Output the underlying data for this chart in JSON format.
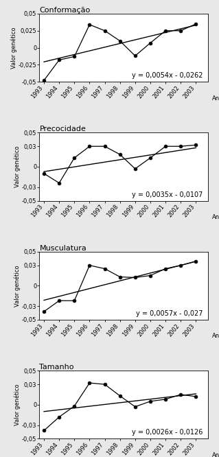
{
  "years": [
    1993,
    1994,
    1995,
    1996,
    1997,
    1998,
    1999,
    2000,
    2001,
    2002,
    2003
  ],
  "panels": [
    {
      "title": "Conformação",
      "equation": "y = 0,0054x - 0,0262",
      "slope": 0.0054,
      "intercept": -0.0262,
      "data_y": [
        -0.048,
        -0.018,
        -0.013,
        0.034,
        0.025,
        0.01,
        -0.012,
        0.007,
        0.025,
        0.025,
        0.035
      ],
      "ylim": [
        -0.05,
        0.05
      ],
      "yticks": [
        -0.05,
        -0.025,
        0,
        0.025,
        0.05
      ],
      "ytick_labels": [
        "-0,05",
        "-0,025",
        "0",
        "0,025",
        "0,05"
      ]
    },
    {
      "title": "Precocidade",
      "equation": "y = 0,0035x - 0,0107",
      "slope": 0.0035,
      "intercept": -0.0107,
      "data_y": [
        -0.01,
        -0.024,
        0.013,
        0.03,
        0.03,
        0.018,
        -0.003,
        0.013,
        0.03,
        0.03,
        0.032
      ],
      "ylim": [
        -0.05,
        0.05
      ],
      "yticks": [
        -0.05,
        -0.03,
        0,
        0.03,
        0.05
      ],
      "ytick_labels": [
        "-0,05",
        "-0,03",
        "0",
        "0,03",
        "0,05"
      ]
    },
    {
      "title": "Musculatura",
      "equation": "y = 0,0057x - 0,027",
      "slope": 0.0057,
      "intercept": -0.027,
      "data_y": [
        -0.038,
        -0.022,
        -0.022,
        0.03,
        0.025,
        0.013,
        0.012,
        0.015,
        0.025,
        0.03,
        0.036
      ],
      "ylim": [
        -0.05,
        0.05
      ],
      "yticks": [
        -0.05,
        -0.03,
        0,
        0.03,
        0.05
      ],
      "ytick_labels": [
        "-0,05",
        "-0,03",
        "0",
        "0,03",
        "0,05"
      ]
    },
    {
      "title": "Tamanho",
      "equation": "y = 0,0026x - 0,0126",
      "slope": 0.0026,
      "intercept": -0.0126,
      "data_y": [
        -0.038,
        -0.018,
        -0.002,
        0.032,
        0.03,
        0.013,
        -0.003,
        0.005,
        0.008,
        0.015,
        0.012
      ],
      "ylim": [
        -0.05,
        0.05
      ],
      "yticks": [
        -0.05,
        -0.03,
        0,
        0.03,
        0.05
      ],
      "ytick_labels": [
        "-0,05",
        "-0,03",
        "0",
        "0,03",
        "0,05"
      ]
    }
  ],
  "bg_color": "#e8e8e8",
  "plot_bg": "#ffffff",
  "line_color": "#000000",
  "trend_color": "#000000",
  "marker": "o",
  "markersize": 3.5,
  "ylabel": "Valor genético",
  "xlabel": "Ano",
  "title_fontsize": 8,
  "tick_fontsize": 6,
  "ylabel_fontsize": 6,
  "eq_fontsize": 7
}
